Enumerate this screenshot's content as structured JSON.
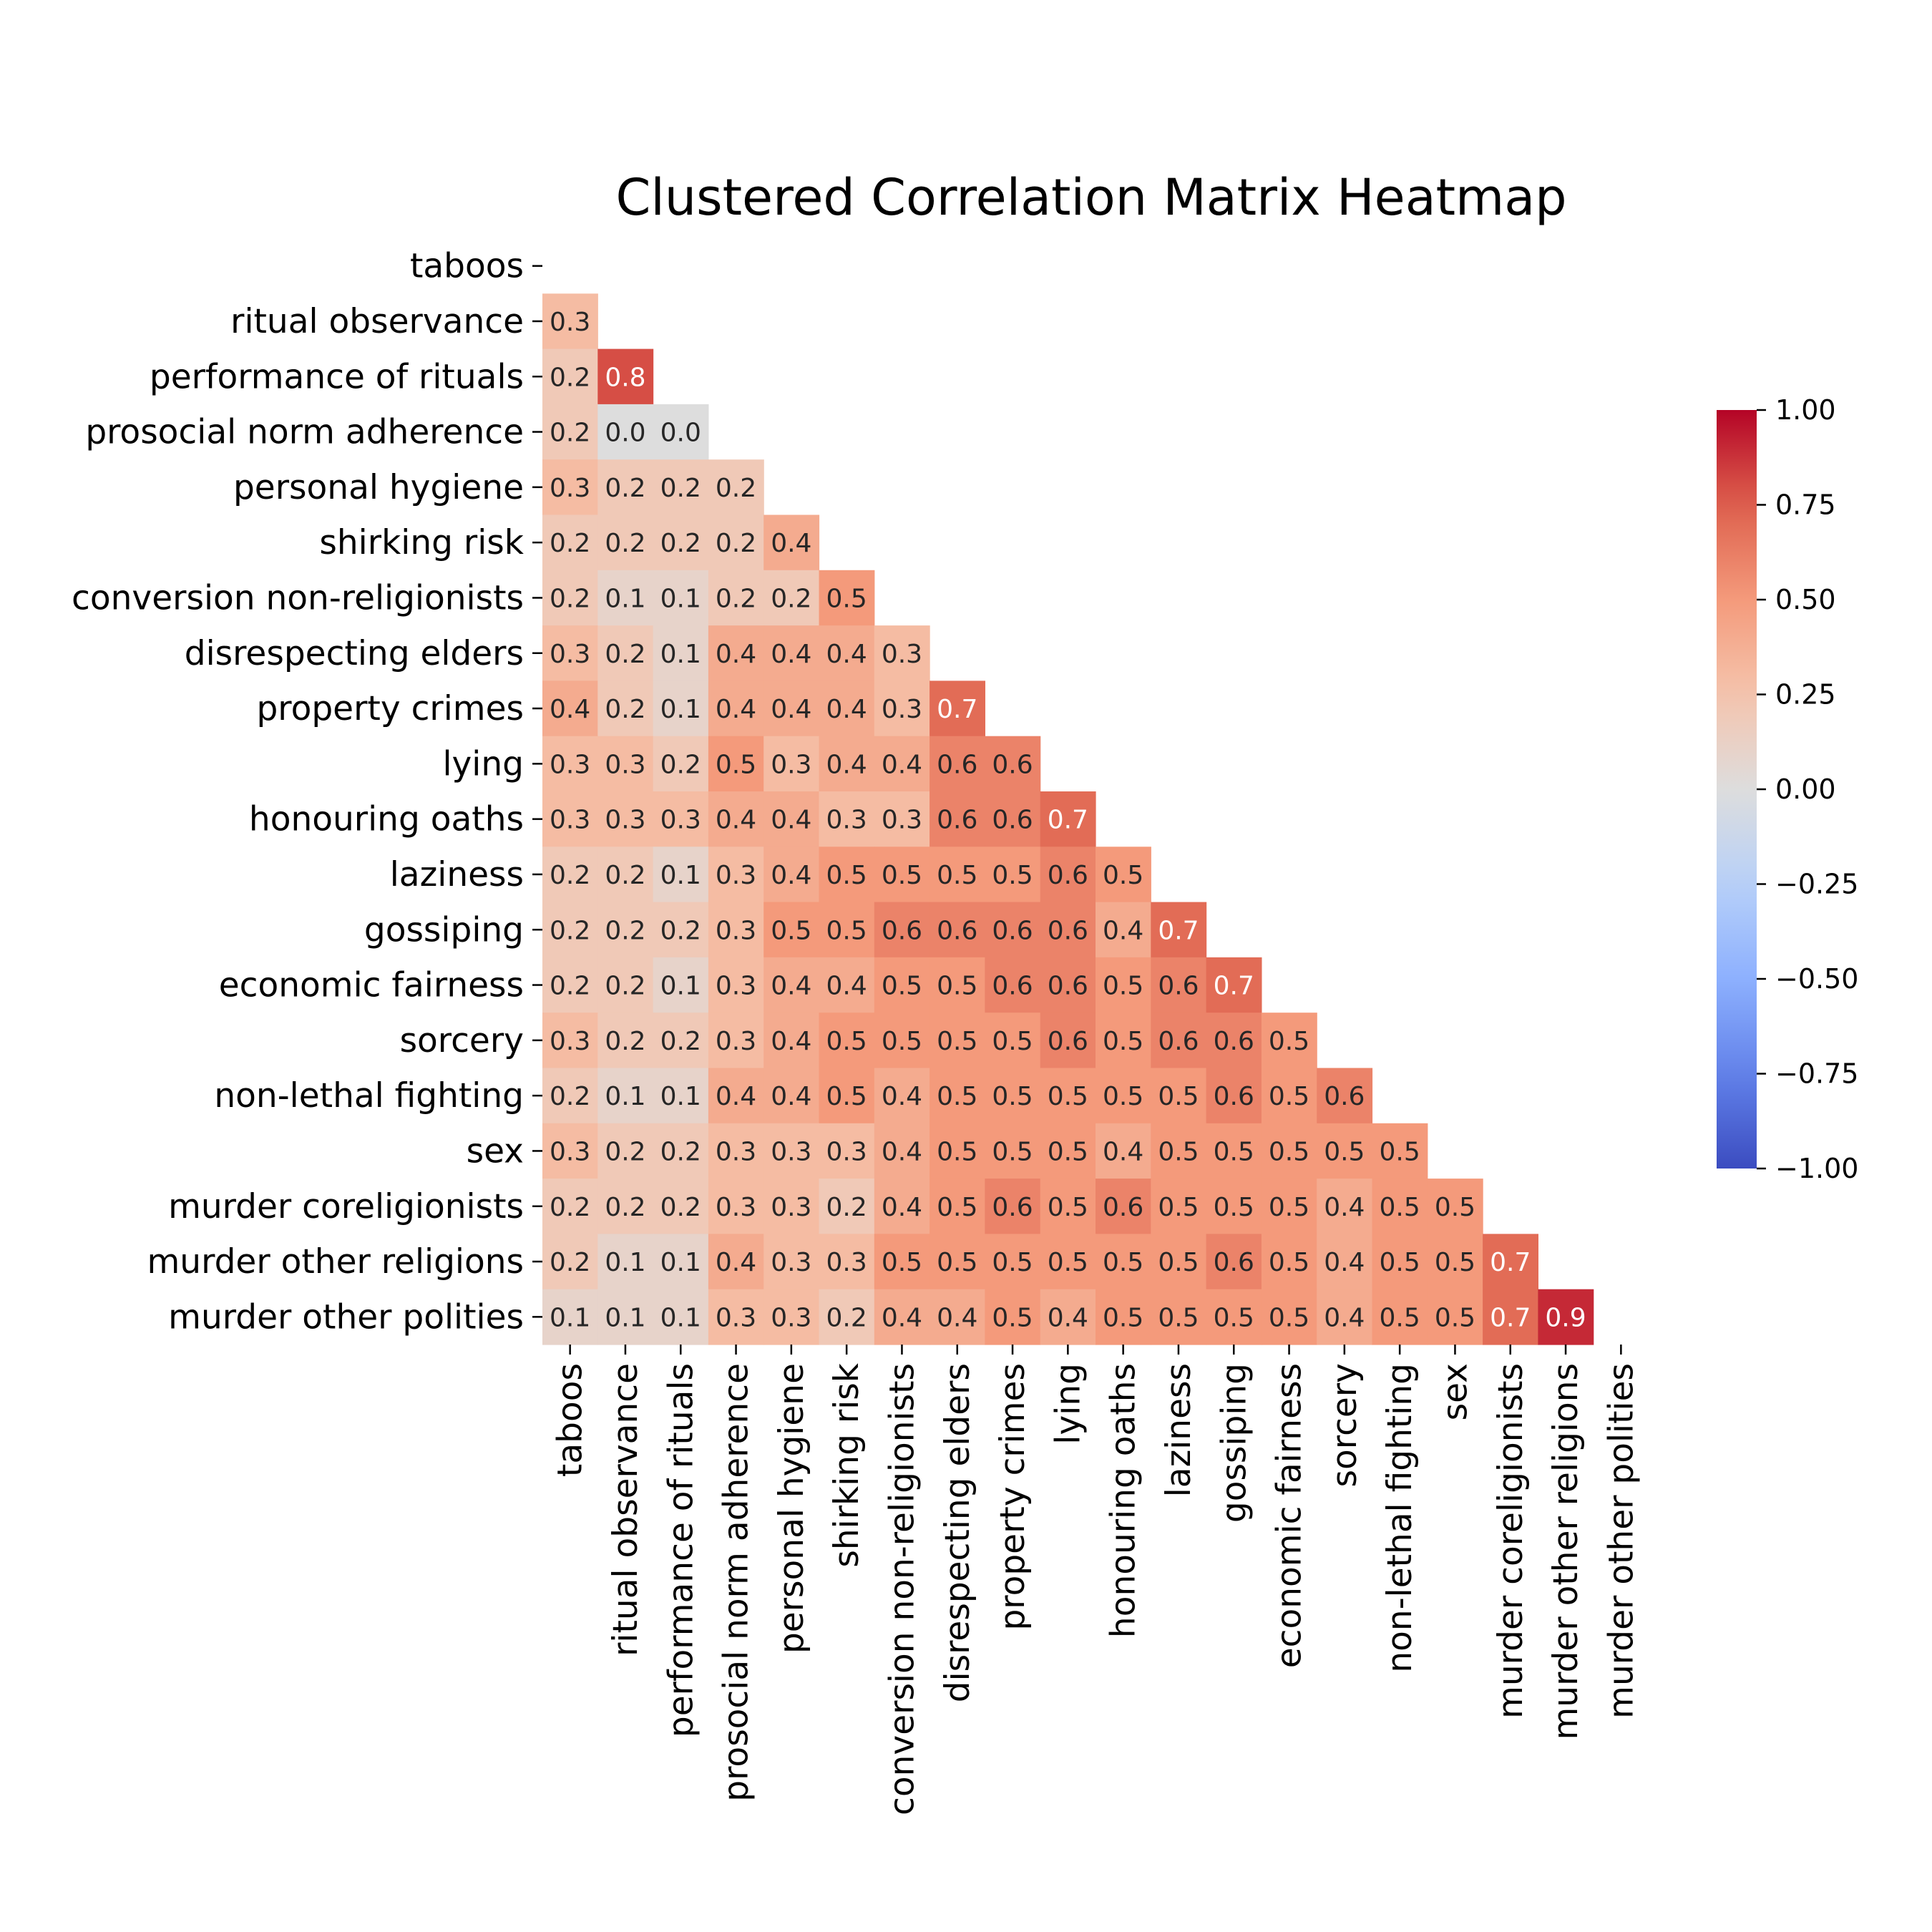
{
  "chart_data": {
    "type": "heatmap",
    "title": "Clustered Correlation Matrix Heatmap",
    "labels": [
      "taboos",
      "ritual observance",
      "performance of rituals",
      "prosocial norm adherence",
      "personal hygiene",
      "shirking risk",
      "conversion non-religionists",
      "disrespecting elders",
      "property crimes",
      "lying",
      "honouring oaths",
      "laziness",
      "gossiping",
      "economic fairness",
      "sorcery",
      "non-lethal fighting",
      "sex",
      "murder coreligionists",
      "murder other religions",
      "murder other polities"
    ],
    "mask": "upper triangle including diagonal",
    "colormap": "coolwarm",
    "vmin": -1.0,
    "vmax": 1.0,
    "colorbar_ticks": [
      "1.00",
      "0.75",
      "0.50",
      "0.25",
      "0.00",
      "−0.25",
      "−0.50",
      "−0.75",
      "−1.00"
    ],
    "lower_triangle_values": [
      [],
      [
        0.3
      ],
      [
        0.2,
        0.8
      ],
      [
        0.2,
        0.0,
        0.0
      ],
      [
        0.3,
        0.2,
        0.2,
        0.2
      ],
      [
        0.2,
        0.2,
        0.2,
        0.2,
        0.4
      ],
      [
        0.2,
        0.1,
        0.1,
        0.2,
        0.2,
        0.5
      ],
      [
        0.3,
        0.2,
        0.1,
        0.4,
        0.4,
        0.4,
        0.3
      ],
      [
        0.4,
        0.2,
        0.1,
        0.4,
        0.4,
        0.4,
        0.3,
        0.7
      ],
      [
        0.3,
        0.3,
        0.2,
        0.5,
        0.3,
        0.4,
        0.4,
        0.6,
        0.6
      ],
      [
        0.3,
        0.3,
        0.3,
        0.4,
        0.4,
        0.3,
        0.3,
        0.6,
        0.6,
        0.7
      ],
      [
        0.2,
        0.2,
        0.1,
        0.3,
        0.4,
        0.5,
        0.5,
        0.5,
        0.5,
        0.6,
        0.5
      ],
      [
        0.2,
        0.2,
        0.2,
        0.3,
        0.5,
        0.5,
        0.6,
        0.6,
        0.6,
        0.6,
        0.4,
        0.7
      ],
      [
        0.2,
        0.2,
        0.1,
        0.3,
        0.4,
        0.4,
        0.5,
        0.5,
        0.6,
        0.6,
        0.5,
        0.6,
        0.7
      ],
      [
        0.3,
        0.2,
        0.2,
        0.3,
        0.4,
        0.5,
        0.5,
        0.5,
        0.5,
        0.6,
        0.5,
        0.6,
        0.6,
        0.5
      ],
      [
        0.2,
        0.1,
        0.1,
        0.4,
        0.4,
        0.5,
        0.4,
        0.5,
        0.5,
        0.5,
        0.5,
        0.5,
        0.6,
        0.5,
        0.6
      ],
      [
        0.3,
        0.2,
        0.2,
        0.3,
        0.3,
        0.3,
        0.4,
        0.5,
        0.5,
        0.5,
        0.4,
        0.5,
        0.5,
        0.5,
        0.5,
        0.5
      ],
      [
        0.2,
        0.2,
        0.2,
        0.3,
        0.3,
        0.2,
        0.4,
        0.5,
        0.6,
        0.5,
        0.6,
        0.5,
        0.5,
        0.5,
        0.4,
        0.5,
        0.5
      ],
      [
        0.2,
        0.1,
        0.1,
        0.4,
        0.3,
        0.3,
        0.5,
        0.5,
        0.5,
        0.5,
        0.5,
        0.5,
        0.6,
        0.5,
        0.4,
        0.5,
        0.5,
        0.7
      ],
      [
        0.1,
        0.1,
        0.1,
        0.3,
        0.3,
        0.2,
        0.4,
        0.4,
        0.5,
        0.4,
        0.5,
        0.5,
        0.5,
        0.5,
        0.4,
        0.5,
        0.5,
        0.7,
        0.9
      ]
    ],
    "annotation_format": "one decimal"
  }
}
